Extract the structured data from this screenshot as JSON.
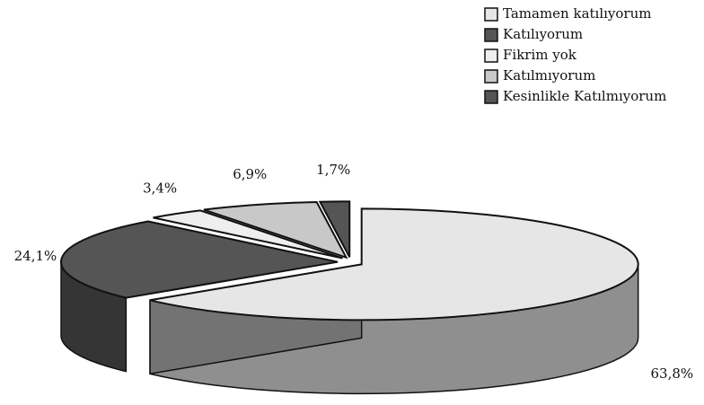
{
  "chart_data": {
    "type": "pie",
    "categories": [
      "Tamamen katılıyorum",
      "Katılıyorum",
      "Fikrim yok",
      "Katılmıyorum",
      "Kesinlikle Katılmıyorum"
    ],
    "values": [
      63.8,
      24.1,
      3.4,
      6.9,
      1.7
    ],
    "value_labels": [
      "63,8%",
      "24,1%",
      "3,4%",
      "6,9%",
      "1,7%"
    ],
    "colors": [
      "#e6e6e6",
      "#555555",
      "#eeeeee",
      "#c8c8c8",
      "#555555"
    ],
    "legend": "top-right"
  }
}
